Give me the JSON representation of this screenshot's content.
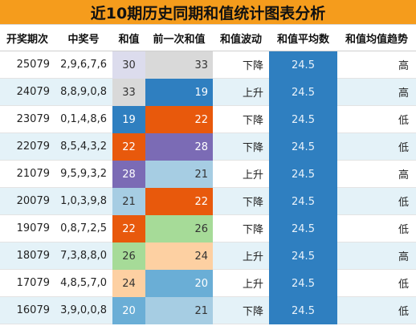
{
  "title": "近10期历史同期和值统计图表分析",
  "headers": [
    "开奖期次",
    "中奖号",
    "和值",
    "前一次和值",
    "和值波动",
    "和值平均数",
    "和值均值趋势"
  ],
  "rows": [
    {
      "period": "25079",
      "nums": "2,9,6,7,6",
      "sum": "30",
      "prev": "33",
      "trend": "下降",
      "avg": "24.5",
      "dir": "高",
      "sum_color": "#dcdced",
      "sum_text": "#333333",
      "prev_color": "#d9d9d9",
      "prev_text": "#333333"
    },
    {
      "period": "24079",
      "nums": "8,8,9,0,8",
      "sum": "33",
      "prev": "19",
      "trend": "上升",
      "avg": "24.5",
      "dir": "高",
      "sum_color": "#d9d9d9",
      "sum_text": "#333333",
      "prev_color": "#2f7fc0",
      "prev_text": "#ffffff"
    },
    {
      "period": "23079",
      "nums": "0,1,4,8,6",
      "sum": "19",
      "prev": "22",
      "trend": "下降",
      "avg": "24.5",
      "dir": "低",
      "sum_color": "#2f7fc0",
      "sum_text": "#ffffff",
      "prev_color": "#e8590c",
      "prev_text": "#ffffff"
    },
    {
      "period": "22079",
      "nums": "8,5,4,3,2",
      "sum": "22",
      "prev": "28",
      "trend": "下降",
      "avg": "24.5",
      "dir": "低",
      "sum_color": "#e8590c",
      "sum_text": "#ffffff",
      "prev_color": "#7b6bb5",
      "prev_text": "#ffffff"
    },
    {
      "period": "21079",
      "nums": "9,5,9,3,2",
      "sum": "28",
      "prev": "21",
      "trend": "上升",
      "avg": "24.5",
      "dir": "高",
      "sum_color": "#7b6bb5",
      "sum_text": "#ffffff",
      "prev_color": "#a6cde3",
      "prev_text": "#333333"
    },
    {
      "period": "20079",
      "nums": "1,0,3,9,8",
      "sum": "21",
      "prev": "22",
      "trend": "下降",
      "avg": "24.5",
      "dir": "低",
      "sum_color": "#a6cde3",
      "sum_text": "#333333",
      "prev_color": "#e8590c",
      "prev_text": "#ffffff"
    },
    {
      "period": "19079",
      "nums": "0,8,7,2,5",
      "sum": "22",
      "prev": "26",
      "trend": "下降",
      "avg": "24.5",
      "dir": "低",
      "sum_color": "#e8590c",
      "sum_text": "#ffffff",
      "prev_color": "#a6db98",
      "prev_text": "#333333"
    },
    {
      "period": "18079",
      "nums": "7,3,8,8,0",
      "sum": "26",
      "prev": "24",
      "trend": "上升",
      "avg": "24.5",
      "dir": "高",
      "sum_color": "#a6db98",
      "sum_text": "#333333",
      "prev_color": "#fdd0a2",
      "prev_text": "#333333"
    },
    {
      "period": "17079",
      "nums": "4,8,5,7,0",
      "sum": "24",
      "prev": "20",
      "trend": "上升",
      "avg": "24.5",
      "dir": "低",
      "sum_color": "#fdd0a2",
      "sum_text": "#333333",
      "prev_color": "#6aaed6",
      "prev_text": "#ffffff"
    },
    {
      "period": "16079",
      "nums": "3,9,0,0,8",
      "sum": "20",
      "prev": "21",
      "trend": "下降",
      "avg": "24.5",
      "dir": "低",
      "sum_color": "#6aaed6",
      "sum_text": "#ffffff",
      "prev_color": "#a6cde3",
      "prev_text": "#333333"
    }
  ]
}
